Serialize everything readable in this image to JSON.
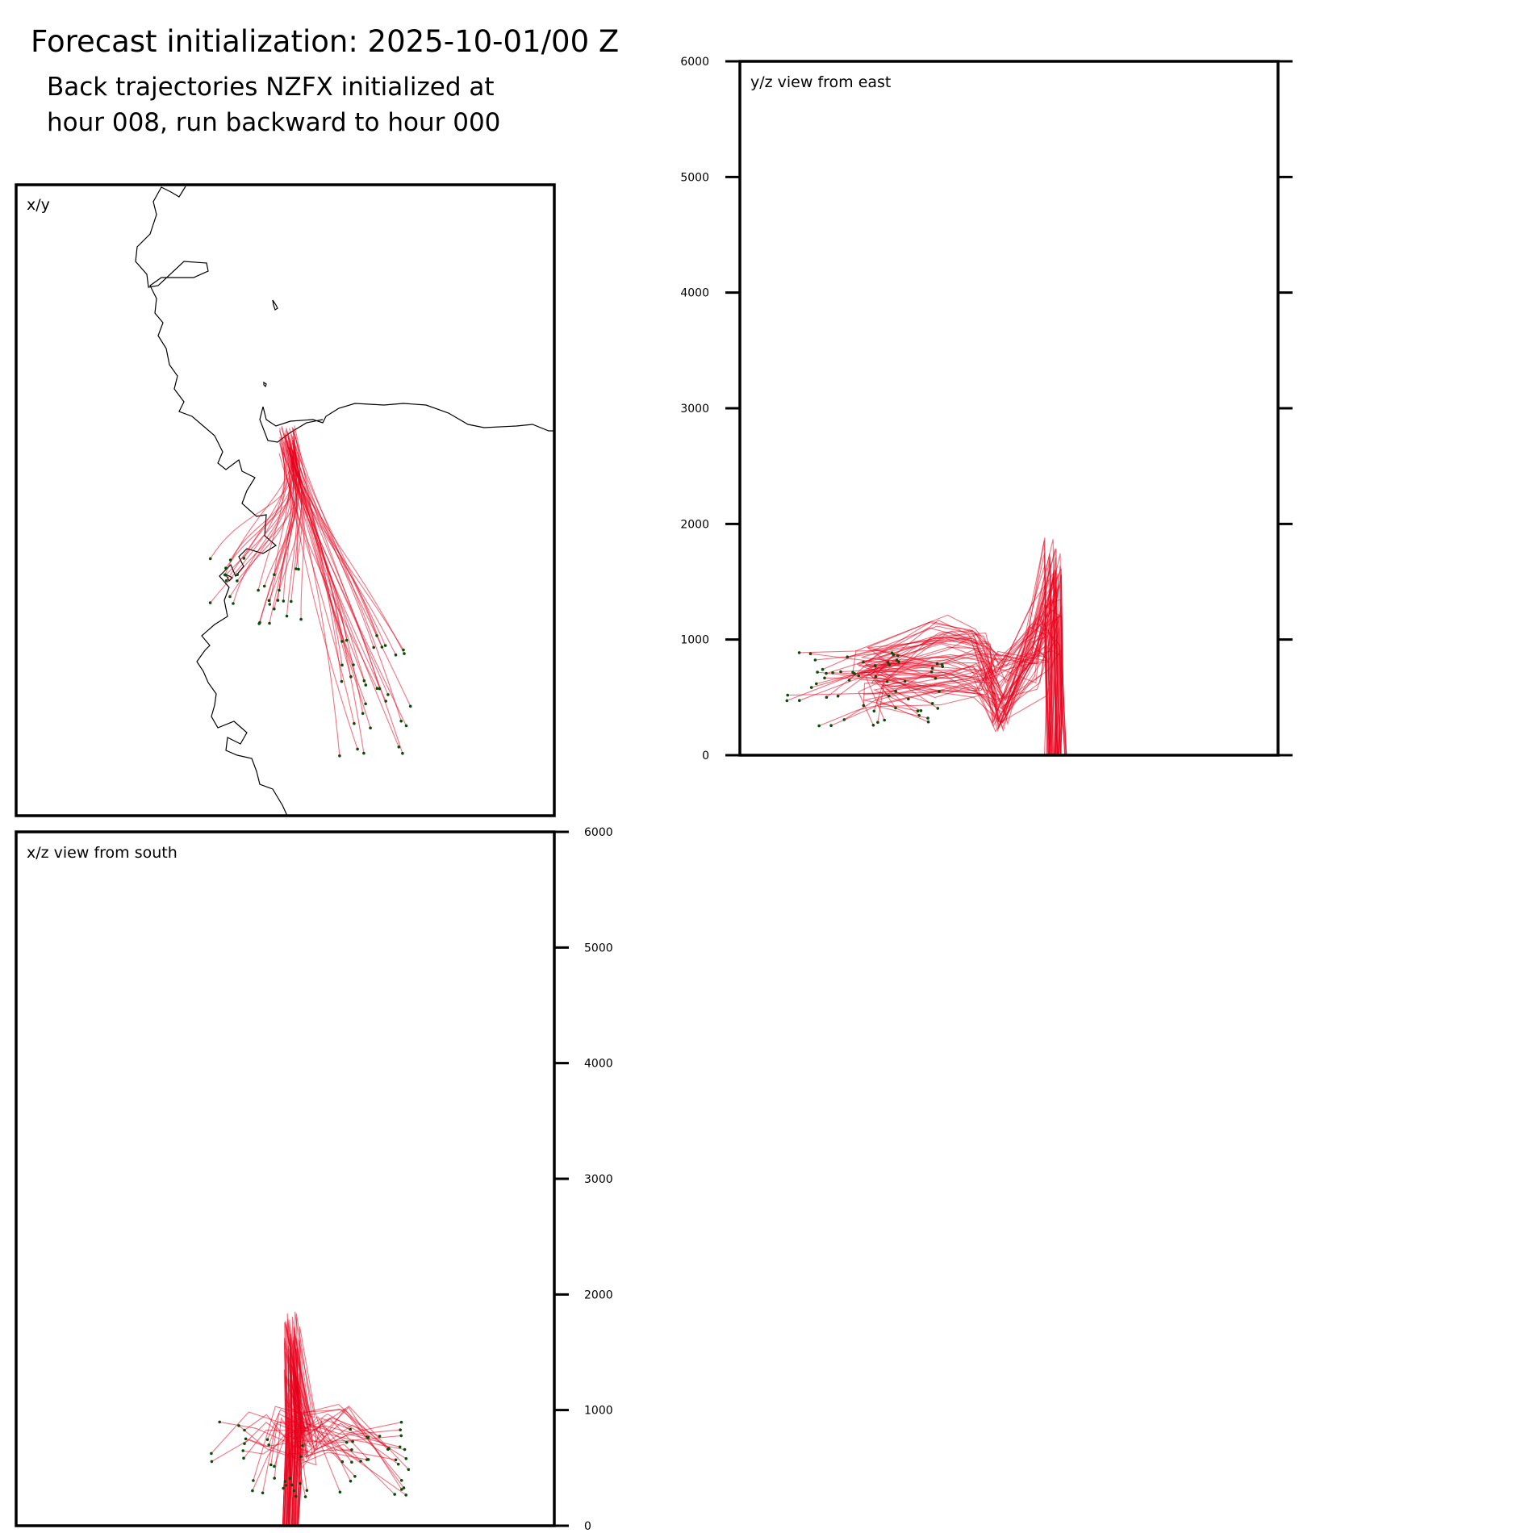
{
  "title": "Forecast initialization: 2025-10-01/00 Z",
  "subtitle_line1": "Back trajectories NZFX initialized at",
  "subtitle_line2": "hour 008, run backward to hour 000",
  "colors": {
    "trajectory": "#e8001c",
    "endpoint": "#0a4d0a",
    "frame": "#000000",
    "coastline": "#000000"
  },
  "chart_data": [
    {
      "type": "line",
      "panel": "x/y",
      "label": "x/y",
      "basemap": "coastline",
      "grid": false,
      "trajectory_count": 60
    },
    {
      "type": "line",
      "panel": "y/z",
      "label": "y/z view from east",
      "ylim": [
        0,
        6000
      ],
      "yticks": [
        0,
        1000,
        2000,
        3000,
        4000,
        5000,
        6000
      ],
      "ytick_side": "left",
      "grid": false
    },
    {
      "type": "line",
      "panel": "x/z",
      "label": "x/z view from south",
      "ylim": [
        0,
        6000
      ],
      "yticks": [
        0,
        1000,
        2000,
        3000,
        4000,
        5000,
        6000
      ],
      "ytick_side": "right",
      "grid": false
    }
  ]
}
